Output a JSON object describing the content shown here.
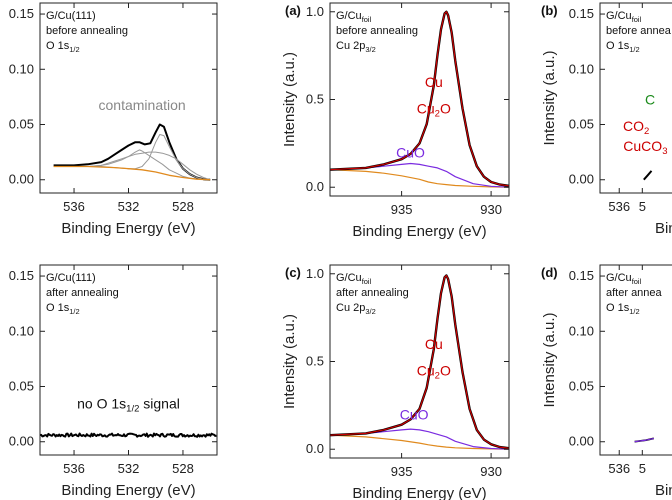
{
  "chart_data": [
    {
      "id": "p1",
      "type": "line",
      "panel_label": "",
      "info": [
        "G/Cu(111)",
        "before annealing",
        "O 1s1/2"
      ],
      "xlabel": "Binding Energy (eV)",
      "ylabel": "",
      "xlim": [
        538.5,
        525.5
      ],
      "ylim": [
        -0.012,
        0.16
      ],
      "xticks": [
        "536",
        "532",
        "528"
      ],
      "yticks": [
        "0.00",
        "0.05",
        "0.10",
        "0.15"
      ],
      "annotations": [
        {
          "text": "contamination",
          "x": 531.0,
          "y": 0.063,
          "color": "#888888"
        }
      ],
      "series": [
        {
          "color": "#000000",
          "width": 2,
          "x": [
            537.5,
            536,
            535,
            534,
            533.5,
            533,
            532.5,
            532,
            531.5,
            531.2,
            530.8,
            530.4,
            530,
            529.7,
            529.4,
            529,
            528.5,
            528,
            527.5,
            527,
            526.5,
            526
          ],
          "y": [
            0.013,
            0.013,
            0.014,
            0.016,
            0.019,
            0.023,
            0.027,
            0.031,
            0.034,
            0.034,
            0.032,
            0.033,
            0.043,
            0.05,
            0.048,
            0.034,
            0.019,
            0.01,
            0.005,
            0.002,
            0.0005,
            0.0
          ]
        },
        {
          "color": "#999999",
          "width": 1,
          "x": [
            537.5,
            535,
            534,
            533.5,
            533,
            532.5,
            532,
            531.5,
            531,
            530.5,
            530,
            529.5,
            529,
            528.5,
            528,
            527.5,
            527,
            526.5,
            526
          ],
          "y": [
            0.012,
            0.012,
            0.013,
            0.015,
            0.017,
            0.019,
            0.021,
            0.023,
            0.024,
            0.025,
            0.025,
            0.024,
            0.022,
            0.019,
            0.014,
            0.009,
            0.005,
            0.002,
            0.0
          ]
        },
        {
          "color": "#999999",
          "width": 1,
          "x": [
            537.5,
            535,
            534,
            533.5,
            533,
            532.5,
            532,
            531.5,
            531.2,
            531,
            530.5,
            530,
            529.5,
            529,
            528.5,
            528,
            527.5,
            527,
            526.5,
            526
          ],
          "y": [
            0.012,
            0.012,
            0.013,
            0.014,
            0.016,
            0.018,
            0.021,
            0.025,
            0.027,
            0.026,
            0.022,
            0.018,
            0.014,
            0.009,
            0.006,
            0.003,
            0.0015,
            0.0008,
            0.0003,
            0.0
          ]
        },
        {
          "color": "#999999",
          "width": 1,
          "x": [
            537.5,
            535,
            534,
            533,
            532,
            531.5,
            531,
            530.5,
            530,
            529.7,
            529.4,
            529,
            528.5,
            528,
            527.5,
            527,
            526.5,
            526
          ],
          "y": [
            0.012,
            0.012,
            0.012,
            0.011,
            0.01,
            0.01,
            0.012,
            0.019,
            0.034,
            0.041,
            0.04,
            0.03,
            0.018,
            0.01,
            0.005,
            0.002,
            0.0005,
            0.0
          ]
        },
        {
          "color": "#e08a1e",
          "width": 1.3,
          "x": [
            537.5,
            535,
            533,
            531,
            530,
            529,
            528,
            527,
            526
          ],
          "y": [
            0.012,
            0.012,
            0.011,
            0.009,
            0.007,
            0.004,
            0.002,
            0.0005,
            0.0
          ]
        }
      ]
    },
    {
      "id": "p2",
      "type": "line",
      "panel_label": "",
      "info": [
        "G/Cu(111)",
        "after annealing",
        "O 1s1/2"
      ],
      "xlabel": "Binding Energy (eV)",
      "ylabel": "",
      "xlim": [
        538.5,
        525.5
      ],
      "ylim": [
        -0.012,
        0.16
      ],
      "xticks": [
        "536",
        "532",
        "528"
      ],
      "yticks": [
        "0.00",
        "0.05",
        "0.10",
        "0.15"
      ],
      "annotations": [
        {
          "text": "no O 1s1/2 signal",
          "x": 532.0,
          "y": 0.03,
          "color": "#111111"
        }
      ],
      "series": [
        {
          "color": "#000000",
          "width": 2,
          "noise": true,
          "x": [
            538.5,
            526
          ],
          "y": [
            0.006,
            0.006
          ]
        }
      ]
    },
    {
      "id": "a",
      "type": "line",
      "panel_label": "(a)",
      "info": [
        "G/Cufoil",
        "before annealing",
        "Cu 2p3/2"
      ],
      "xlabel": "Binding Energy (eV)",
      "ylabel": "Intensity (a.u.)",
      "xlim": [
        939,
        929
      ],
      "ylim": [
        -0.05,
        1.05
      ],
      "xticks": [
        "935",
        "930"
      ],
      "yticks": [
        "0.0",
        "0.5",
        "1.0"
      ],
      "annotations": [
        {
          "text": "Cu",
          "x": 933.2,
          "y": 0.57,
          "color": "#cc0000"
        },
        {
          "text": "Cu2O",
          "x": 933.2,
          "y": 0.42,
          "color": "#cc0000"
        },
        {
          "text": "CuO",
          "x": 934.5,
          "y": 0.17,
          "color": "#7a2be0"
        }
      ],
      "series": [
        {
          "color": "#e08a1e",
          "width": 1.2,
          "x": [
            939,
            937,
            936,
            935,
            934,
            933.5,
            933,
            932.5,
            932,
            931,
            930,
            929
          ],
          "y": [
            0.1,
            0.09,
            0.08,
            0.065,
            0.045,
            0.03,
            0.02,
            0.015,
            0.01,
            0.005,
            0.002,
            0.0
          ]
        },
        {
          "color": "#7a2be0",
          "width": 1.2,
          "x": [
            939,
            937,
            936,
            935,
            934.5,
            934,
            933.5,
            933,
            932.5,
            932,
            931,
            930,
            929
          ],
          "y": [
            0.1,
            0.11,
            0.12,
            0.13,
            0.135,
            0.13,
            0.12,
            0.11,
            0.09,
            0.06,
            0.02,
            0.005,
            0.0
          ]
        },
        {
          "color": "#000000",
          "width": 2.4,
          "x": [
            939,
            937,
            936,
            935,
            934.5,
            934,
            933.6,
            933.2,
            933,
            932.8,
            932.6,
            932.5,
            932.4,
            932.2,
            932,
            931.6,
            931.2,
            930.8,
            930.4,
            930,
            929.5,
            929
          ],
          "y": [
            0.1,
            0.11,
            0.13,
            0.16,
            0.19,
            0.25,
            0.36,
            0.58,
            0.75,
            0.9,
            0.99,
            1.0,
            0.98,
            0.88,
            0.72,
            0.45,
            0.24,
            0.12,
            0.06,
            0.03,
            0.015,
            0.008
          ]
        },
        {
          "color": "#cc0000",
          "width": 1.2,
          "x": [
            939,
            937,
            936,
            935,
            934.5,
            934,
            933.6,
            933.2,
            933,
            932.8,
            932.6,
            932.5,
            932.4,
            932.2,
            932,
            931.6,
            931.2,
            930.8,
            930.4,
            930,
            929.5,
            929
          ],
          "y": [
            0.1,
            0.11,
            0.13,
            0.16,
            0.19,
            0.25,
            0.36,
            0.58,
            0.75,
            0.9,
            0.99,
            1.0,
            0.98,
            0.88,
            0.72,
            0.45,
            0.24,
            0.12,
            0.06,
            0.03,
            0.015,
            0.008
          ]
        }
      ]
    },
    {
      "id": "c",
      "type": "line",
      "panel_label": "(c)",
      "info": [
        "G/Cufoil",
        "after annealing",
        "Cu 2p3/2"
      ],
      "xlabel": "Binding Energy (eV)",
      "ylabel": "Intensity (a.u.)",
      "xlim": [
        939,
        929
      ],
      "ylim": [
        -0.05,
        1.05
      ],
      "xticks": [
        "935",
        "930"
      ],
      "yticks": [
        "0.0",
        "0.5",
        "1.0"
      ],
      "annotations": [
        {
          "text": "Cu",
          "x": 933.2,
          "y": 0.57,
          "color": "#cc0000"
        },
        {
          "text": "Cu2O",
          "x": 933.2,
          "y": 0.42,
          "color": "#cc0000"
        },
        {
          "text": "CuO",
          "x": 934.3,
          "y": 0.17,
          "color": "#7a2be0"
        }
      ],
      "series": [
        {
          "color": "#e08a1e",
          "width": 1.2,
          "x": [
            939,
            937,
            936,
            935,
            934,
            933.5,
            933,
            932.5,
            932,
            931,
            930,
            929
          ],
          "y": [
            0.08,
            0.07,
            0.06,
            0.05,
            0.035,
            0.025,
            0.018,
            0.012,
            0.008,
            0.004,
            0.002,
            0.0
          ]
        },
        {
          "color": "#7a2be0",
          "width": 1.2,
          "x": [
            939,
            937,
            936,
            935,
            934.5,
            934,
            933.5,
            933,
            932.5,
            932,
            931,
            930,
            929
          ],
          "y": [
            0.08,
            0.09,
            0.1,
            0.11,
            0.115,
            0.11,
            0.1,
            0.085,
            0.07,
            0.045,
            0.015,
            0.004,
            0.0
          ]
        },
        {
          "color": "#000000",
          "width": 2.4,
          "x": [
            939,
            937,
            936,
            935,
            934.5,
            934,
            933.6,
            933.2,
            933,
            932.8,
            932.6,
            932.5,
            932.4,
            932.2,
            932,
            931.6,
            931.2,
            930.8,
            930.4,
            930,
            929.5,
            929
          ],
          "y": [
            0.08,
            0.09,
            0.11,
            0.14,
            0.17,
            0.23,
            0.35,
            0.57,
            0.74,
            0.89,
            0.98,
            0.99,
            0.97,
            0.87,
            0.71,
            0.44,
            0.23,
            0.11,
            0.055,
            0.028,
            0.012,
            0.006
          ]
        },
        {
          "color": "#cc0000",
          "width": 1.2,
          "x": [
            939,
            937,
            936,
            935,
            934.5,
            934,
            933.6,
            933.2,
            933,
            932.8,
            932.6,
            932.5,
            932.4,
            932.2,
            932,
            931.6,
            931.2,
            930.8,
            930.4,
            930,
            929.5,
            929
          ],
          "y": [
            0.08,
            0.09,
            0.11,
            0.14,
            0.17,
            0.23,
            0.35,
            0.57,
            0.74,
            0.89,
            0.98,
            0.99,
            0.97,
            0.87,
            0.71,
            0.44,
            0.23,
            0.11,
            0.055,
            0.028,
            0.012,
            0.006
          ]
        }
      ]
    },
    {
      "id": "b",
      "type": "line",
      "panel_label": "(b)",
      "info": [
        "G/Cufoil",
        "before annea",
        "O 1s1/2"
      ],
      "xlabel": "Binding",
      "ylabel": "Intensity (a.u.)",
      "xlim": [
        538.5,
        525.5
      ],
      "ylim": [
        -0.012,
        0.16
      ],
      "xticks": [
        "536",
        "5"
      ],
      "yticks": [
        "0.00",
        "0.05",
        "0.10",
        "0.15"
      ],
      "annotations": [
        {
          "text": "C",
          "x": 532.0,
          "y": 0.068,
          "color": "#1a8a1a"
        },
        {
          "text": "CO2",
          "x": 533.8,
          "y": 0.044,
          "color": "#cc0000"
        },
        {
          "text": "CuCO3",
          "x": 532.6,
          "y": 0.026,
          "color": "#cc0000"
        }
      ],
      "series": [
        {
          "color": "#000000",
          "width": 2,
          "x": [
            532.8,
            532.3,
            531.8
          ],
          "y": [
            0.0,
            0.004,
            0.008
          ]
        }
      ]
    },
    {
      "id": "d",
      "type": "line",
      "panel_label": "(d)",
      "info": [
        "G/Cufoil",
        "after annea",
        "O 1s1/2"
      ],
      "xlabel": "Binding",
      "ylabel": "Intensity (a.u.)",
      "xlim": [
        538.5,
        525.5
      ],
      "ylim": [
        -0.012,
        0.16
      ],
      "xticks": [
        "536",
        "5"
      ],
      "yticks": [
        "0.00",
        "0.05",
        "0.10",
        "0.15"
      ],
      "annotations": [],
      "series": [
        {
          "color": "#000000",
          "width": 1.8,
          "x": [
            534.0,
            532.5,
            531.5
          ],
          "y": [
            0.0,
            0.0015,
            0.003
          ]
        },
        {
          "color": "#7a2be0",
          "width": 1.2,
          "x": [
            534.0,
            532.5,
            531.5
          ],
          "y": [
            0.0,
            0.0015,
            0.003
          ]
        }
      ]
    }
  ]
}
